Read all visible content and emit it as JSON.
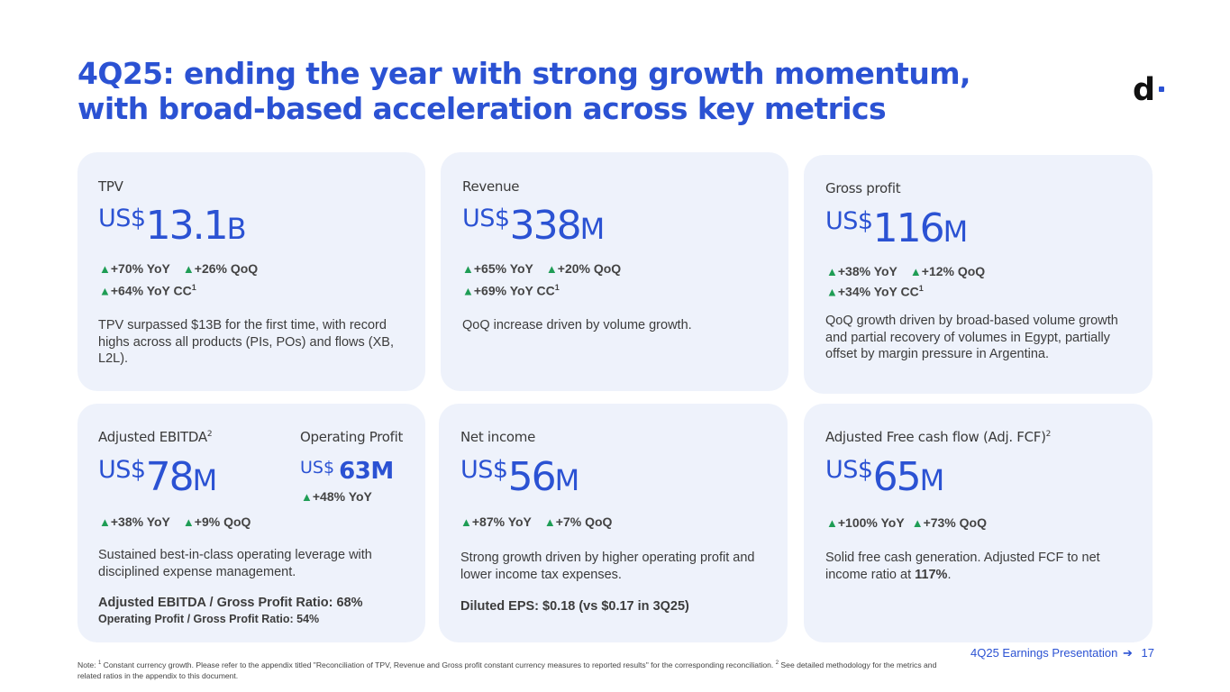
{
  "title": "4Q25: ending the year with strong growth momentum, with broad-based acceleration across key metrics",
  "logo_text": "d",
  "colors": {
    "brand_blue": "#2b52d3",
    "card_bg": "#eef2fb",
    "up_green": "#1f9d55"
  },
  "up_icon": "triangle-up-icon",
  "cards": {
    "tpv": {
      "label": "TPV",
      "currency": "US$",
      "number": "13.1",
      "unit": "B",
      "g1": "+70% YoY",
      "g2": "+26% QoQ",
      "g3": "+64% YoY CC",
      "g3_sup": "1",
      "desc": "TPV surpassed $13B for the first time, with record highs across all products (PIs, POs) and flows (XB, L2L)."
    },
    "revenue": {
      "label": "Revenue",
      "currency": "US$",
      "number": "338",
      "unit": "M",
      "g1": "+65% YoY",
      "g2": "+20% QoQ",
      "g3": "+69% YoY CC",
      "g3_sup": "1",
      "desc": "QoQ increase driven by volume growth."
    },
    "gross_profit": {
      "label": "Gross profit",
      "currency": "US$",
      "number": "116",
      "unit": "M",
      "g1": "+38% YoY",
      "g2": "+12% QoQ",
      "g3": "+34% YoY CC",
      "g3_sup": "1",
      "desc": "QoQ growth driven by broad-based volume growth and partial recovery of volumes in Egypt, partially offset by margin pressure in Argentina."
    },
    "ebitda": {
      "label": "Adjusted EBITDA",
      "label_sup": "2",
      "currency": "US$",
      "number": "78",
      "unit": "M",
      "g1": "+38% YoY",
      "g2": "+9% QoQ",
      "op_label": "Operating Profit",
      "op_currency": "US$",
      "op_value": "63M",
      "op_growth": "+48% YoY",
      "desc": "Sustained best-in-class operating leverage with disciplined expense management.",
      "ratio1": "Adjusted EBITDA / Gross Profit Ratio: 68%",
      "ratio2": "Operating Profit / Gross Profit Ratio: 54%"
    },
    "net_income": {
      "label": "Net income",
      "currency": "US$",
      "number": "56",
      "unit": "M",
      "g1": "+87% YoY",
      "g2": "+7% QoQ",
      "desc": "Strong growth driven by higher operating profit and lower income tax expenses.",
      "eps": "Diluted EPS: $0.18 (vs $0.17 in 3Q25)"
    },
    "fcf": {
      "label": "Adjusted Free cash flow (Adj. FCF)",
      "label_sup": "2",
      "currency": "US$",
      "number": "65",
      "unit": "M",
      "g1": "+100% YoY",
      "g2": "+73% QoQ",
      "desc_pre": "Solid free cash generation. Adjusted FCF to net income ratio at ",
      "desc_bold": "117%",
      "desc_post": "."
    }
  },
  "note": {
    "prefix": "Note: ",
    "sup1": "1",
    "text1": " Constant currency growth. Please refer to the appendix titled \"Reconciliation of TPV, Revenue and Gross profit constant currency measures to reported results\" for the corresponding reconciliation. ",
    "sup2": "2",
    "text2": " See detailed methodology for the metrics and related ratios in the appendix to this document."
  },
  "footer": {
    "text": "4Q25 Earnings Presentation",
    "arrow": "➔",
    "page": "17"
  }
}
